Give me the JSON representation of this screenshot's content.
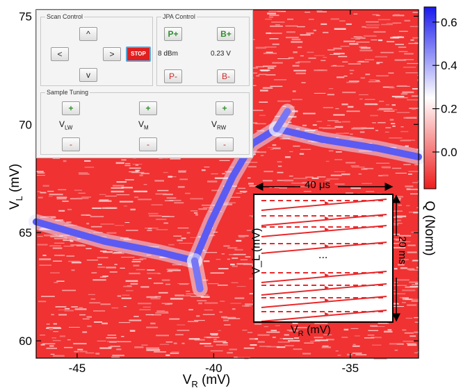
{
  "chart_data": {
    "type": "heatmap",
    "title": "",
    "xlabel": "V_R (mV)",
    "ylabel": "V_L (mV)",
    "xlim": [
      -46.5,
      -32.5
    ],
    "ylim": [
      59.2,
      75.3
    ],
    "x_ticks": [
      {
        "value": -45,
        "label": "-45"
      },
      {
        "value": -40,
        "label": "-40"
      },
      {
        "value": -35,
        "label": "-35"
      }
    ],
    "y_ticks": [
      {
        "value": 60,
        "label": "60"
      },
      {
        "value": 65,
        "label": "65"
      },
      {
        "value": 70,
        "label": "70"
      },
      {
        "value": 75,
        "label": "75"
      }
    ],
    "colorbar": {
      "label": "Q (Norm)",
      "range": [
        -0.17,
        0.67
      ],
      "ticks": [
        {
          "value": 0.0,
          "label": "0.0"
        },
        {
          "value": 0.2,
          "label": "0.2"
        },
        {
          "value": 0.4,
          "label": "0.4"
        },
        {
          "value": 0.6,
          "label": "0.6"
        }
      ],
      "low_color": "#ee1c1c",
      "mid_color": "#ffffff",
      "high_color": "#1a1aee"
    },
    "background_level": -0.13,
    "feature_lines": [
      {
        "name_hidden": true,
        "points": [
          [
            -46.5,
            65.5
          ],
          [
            -44,
            64.6
          ],
          [
            -42,
            64.1
          ],
          [
            -40.7,
            63.7
          ]
        ],
        "level": 0.55
      },
      {
        "points": [
          [
            -40.7,
            63.7
          ],
          [
            -40.1,
            65.5
          ],
          [
            -39.3,
            67.6
          ],
          [
            -38.6,
            69.1
          ],
          [
            -37.7,
            69.8
          ]
        ],
        "level": 0.55
      },
      {
        "points": [
          [
            -37.7,
            69.8
          ],
          [
            -36.0,
            69.3
          ],
          [
            -34.0,
            68.9
          ],
          [
            -32.5,
            68.5
          ]
        ],
        "level": 0.55
      },
      {
        "points": [
          [
            -37.7,
            69.8
          ],
          [
            -37.3,
            70.6
          ]
        ],
        "level": 0.5
      },
      {
        "points": [
          [
            -40.7,
            63.7
          ],
          [
            -40.5,
            62.4
          ]
        ],
        "level": 0.5
      }
    ]
  },
  "control_panel": {
    "scan_control": {
      "title": "Scan Control",
      "up": "^",
      "left": "<",
      "right": ">",
      "down": "v",
      "stop": "STOP"
    },
    "jpa_control": {
      "title": "JPA Control",
      "p_plus": "P+",
      "b_plus": "B+",
      "power": "8 dBm",
      "bias": "0.23 V",
      "p_minus": "P-",
      "b_minus": "B-"
    },
    "sample_tuning": {
      "title": "Sample Tuning",
      "plus": "+",
      "minus": "-",
      "gates": [
        {
          "main": "V",
          "sub": "LW"
        },
        {
          "main": "V",
          "sub": "M"
        },
        {
          "main": "V",
          "sub": "RW"
        }
      ]
    }
  },
  "inset": {
    "time_horizontal": "40 μs",
    "time_vertical": "20 ms",
    "ellipsis": "...",
    "xlabel_main": "V",
    "xlabel_sub": "R",
    "xlabel_unit": " (mV)",
    "ylabel": "V_L (mV)",
    "line_color": "#e8282a"
  }
}
